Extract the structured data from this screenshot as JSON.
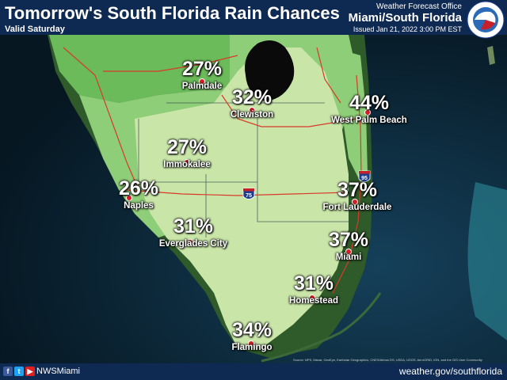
{
  "header": {
    "title": "Tomorrow's South Florida Rain Chances",
    "valid": "Valid Saturday",
    "office": "Weather Forecast Office",
    "region": "Miami/South Florida",
    "issued": "Issued Jan 21, 2022 3:00 PM EST"
  },
  "logo": {
    "icon": "nws-logo-icon",
    "text": "NATIONAL WEATHER SERVICE"
  },
  "locations": [
    {
      "percent": "27%",
      "city": "Palmdale"
    },
    {
      "percent": "32%",
      "city": "Clewiston"
    },
    {
      "percent": "44%",
      "city": "West Palm Beach"
    },
    {
      "percent": "27%",
      "city": "Immokalee"
    },
    {
      "percent": "26%",
      "city": "Naples"
    },
    {
      "percent": "37%",
      "city": "Fort Lauderdale"
    },
    {
      "percent": "31%",
      "city": "Everglades City"
    },
    {
      "percent": "37%",
      "city": "Miami"
    },
    {
      "percent": "31%",
      "city": "Homestead"
    },
    {
      "percent": "34%",
      "city": "Flamingo"
    }
  ],
  "highways": {
    "i75": "75",
    "i95": "95"
  },
  "credit": "Source: NPS, Maxar, GeoEye, Earthstar Geographics, CNES/Airbus DS, USDA, USGS, AeroGRID, IGN, and the GIS User Community",
  "footer": {
    "icons": [
      "facebook-icon",
      "twitter-icon",
      "youtube-icon"
    ],
    "handle": "NWSMiami",
    "website": "weather.gov/southflorida"
  },
  "colors": {
    "header_bg": "#0f2a52",
    "water": "#0b2233",
    "rain_light": "#c9e6a8",
    "rain_mid": "#8fce78",
    "rain_dark": "#6bbb5a",
    "lake": "#0a0a0a",
    "roads": "#d83a2a",
    "dot": "#d91e26"
  }
}
